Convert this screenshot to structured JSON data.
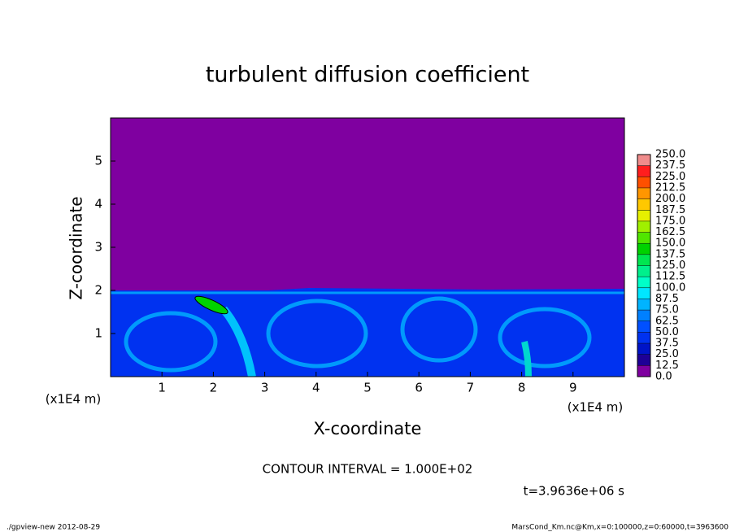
{
  "chart_data": {
    "type": "contour",
    "title": "turbulent diffusion coefficient",
    "x_label": "X-coordinate",
    "y_label": "Z-coordinate",
    "x_unit": "(x1E4 m)",
    "y_unit": "(x1E4 m)",
    "xlim": [
      0,
      10
    ],
    "xticks": [
      1,
      2,
      3,
      4,
      5,
      6,
      7,
      8,
      9
    ],
    "ylim": [
      0,
      6
    ],
    "yticks": [
      1,
      2,
      3,
      4,
      5
    ],
    "contour_interval": "CONTOUR INTERVAL = 1.000E+02",
    "time_label": "t=3.9636e+06 s",
    "colorbar": {
      "levels": [
        {
          "value": 0,
          "label": "0.0"
        },
        12.5,
        {
          "value": 25,
          "label": "25.0"
        },
        37.5,
        {
          "value": 50,
          "label": "50.0"
        },
        62.5,
        {
          "value": 75,
          "label": "75.0"
        },
        87.5,
        {
          "value": 100,
          "label": "100.0"
        },
        112.5,
        {
          "value": 125,
          "label": "125.0"
        },
        137.5,
        {
          "value": 150,
          "label": "150.0"
        },
        162.5,
        {
          "value": 175,
          "label": "175.0"
        },
        187.5,
        {
          "value": 200,
          "label": "200.0"
        },
        212.5,
        {
          "value": 225,
          "label": "225.0"
        },
        237.5,
        {
          "value": 250,
          "label": "250.0"
        }
      ],
      "colors": [
        "#7f00a0",
        "#1e0096",
        "#0014c8",
        "#0032f0",
        "#0050ff",
        "#0080ff",
        "#00b4ff",
        "#00e6ff",
        "#00ffc8",
        "#00f08c",
        "#00e650",
        "#00d200",
        "#50e600",
        "#a0f000",
        "#e6f000",
        "#ffc800",
        "#ff9600",
        "#ff5000",
        "#ff1e1e",
        "#f08c8c"
      ]
    }
  },
  "footer": {
    "left": "./gpview-new  2012-08-29",
    "right": "MarsCond_Km.nc@Km,x=0:100000,z=0:60000,t=3963600"
  }
}
